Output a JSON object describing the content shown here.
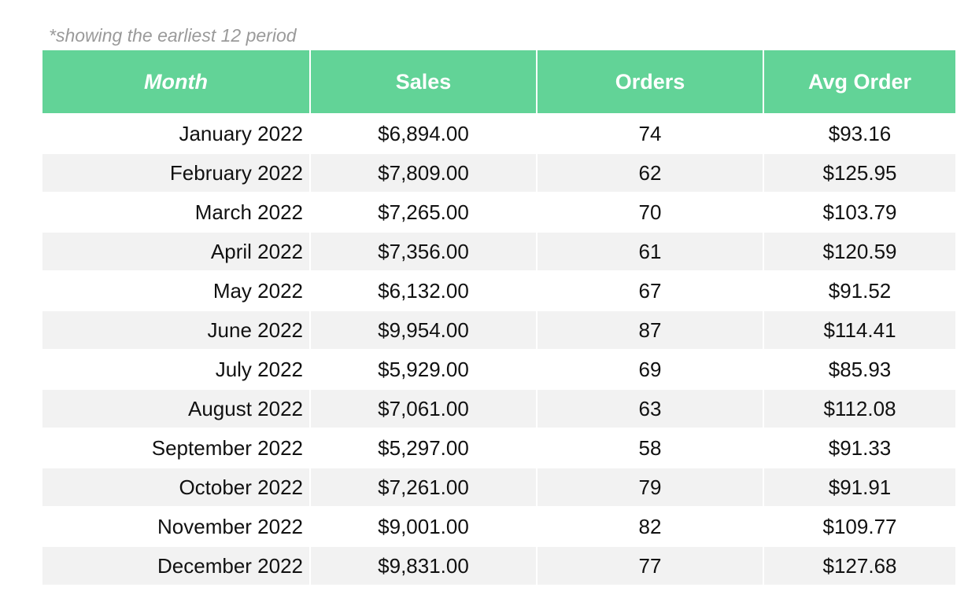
{
  "note": "*showing the earliest 12 period",
  "chart_data": {
    "type": "table",
    "columns": [
      "Month",
      "Sales",
      "Orders",
      "Avg Order"
    ],
    "rows": [
      [
        "January 2022",
        "$6,894.00",
        "74",
        "$93.16"
      ],
      [
        "February 2022",
        "$7,809.00",
        "62",
        "$125.95"
      ],
      [
        "March 2022",
        "$7,265.00",
        "70",
        "$103.79"
      ],
      [
        "April 2022",
        "$7,356.00",
        "61",
        "$120.59"
      ],
      [
        "May 2022",
        "$6,132.00",
        "67",
        "$91.52"
      ],
      [
        "June 2022",
        "$9,954.00",
        "87",
        "$114.41"
      ],
      [
        "July 2022",
        "$5,929.00",
        "69",
        "$85.93"
      ],
      [
        "August 2022",
        "$7,061.00",
        "63",
        "$112.08"
      ],
      [
        "September 2022",
        "$5,297.00",
        "58",
        "$91.33"
      ],
      [
        "October 2022",
        "$7,261.00",
        "79",
        "$91.91"
      ],
      [
        "November 2022",
        "$9,001.00",
        "82",
        "$109.77"
      ],
      [
        "December 2022",
        "$9,831.00",
        "77",
        "$127.68"
      ]
    ],
    "header_color": "#62d397",
    "header_text_color": "#ffffff",
    "stripe_color": "#f2f2f2"
  }
}
